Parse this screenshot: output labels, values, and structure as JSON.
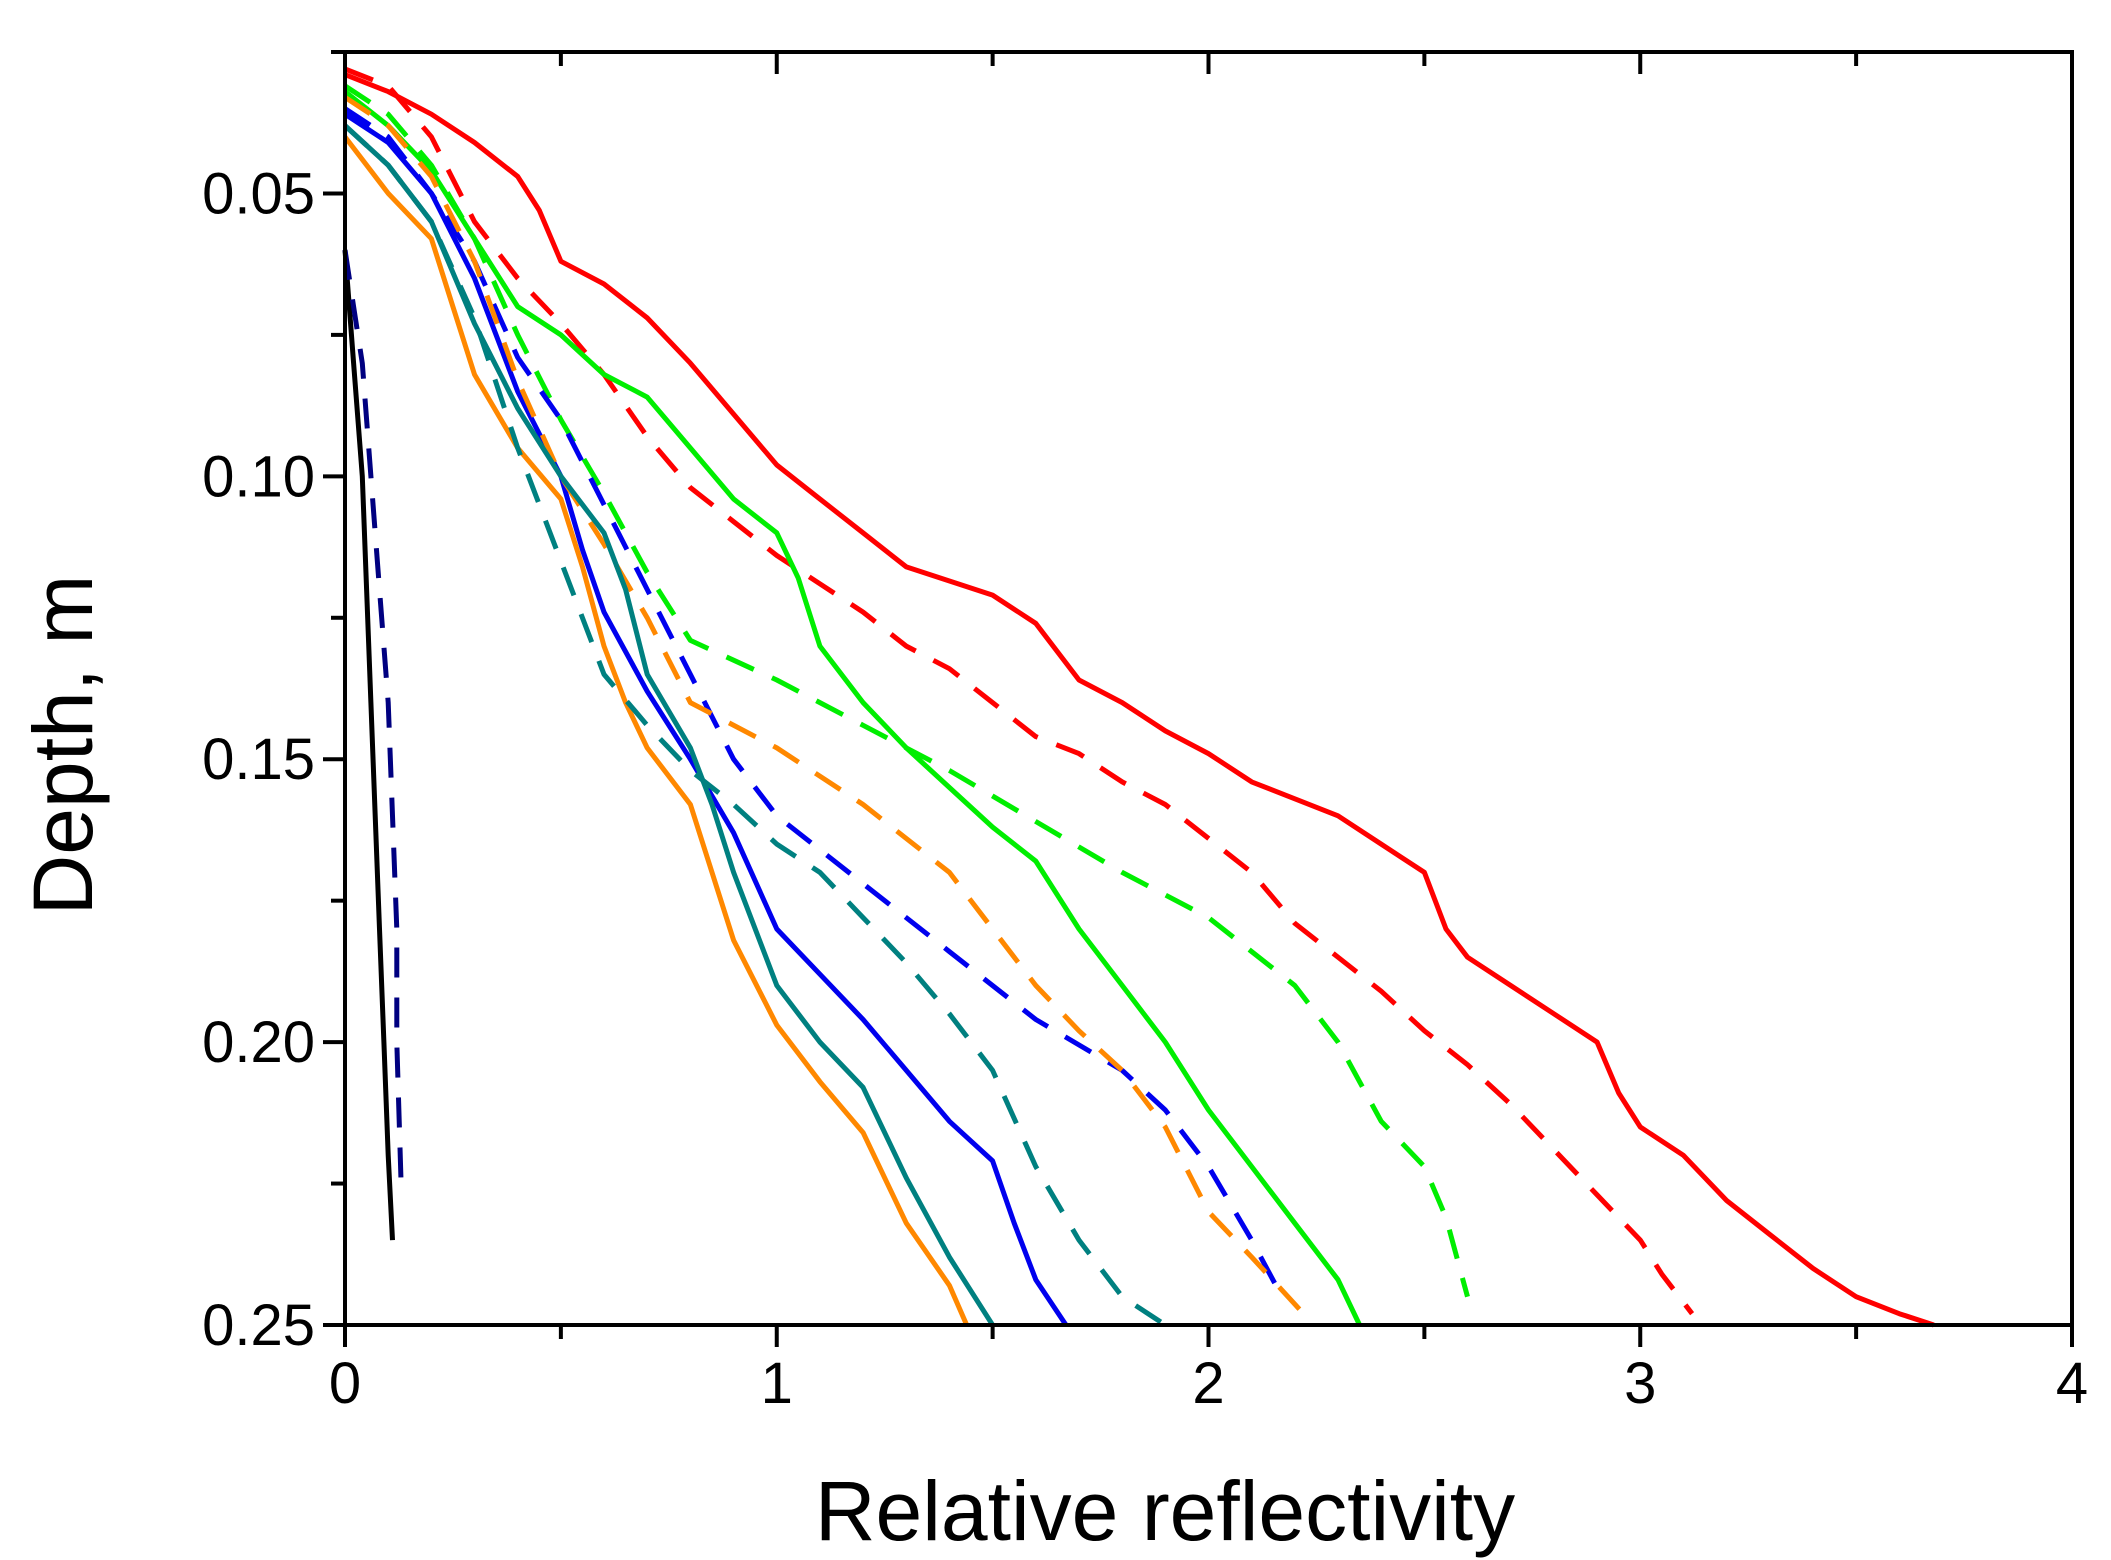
{
  "chart_data": {
    "type": "line",
    "title": "",
    "xlabel": "Relative reflectivity",
    "ylabel": "Depth, m",
    "xlim": [
      0,
      4
    ],
    "ylim": [
      0.025,
      0.25
    ],
    "y_inverted": true,
    "grid": false,
    "legend": "none",
    "x_ticks": [
      0,
      1,
      2,
      3,
      4
    ],
    "x_tick_labels": [
      "0",
      "1",
      "2",
      "3",
      "4"
    ],
    "y_ticks": [
      0.05,
      0.1,
      0.15,
      0.2,
      0.25
    ],
    "y_tick_labels": [
      "0.05",
      "0.10",
      "0.15",
      "0.20",
      "0.25"
    ],
    "series": [
      {
        "name": "red solid",
        "color": "#ff0000",
        "dash": "solid",
        "points": [
          [
            0,
            0.029
          ],
          [
            0.1,
            0.032
          ],
          [
            0.2,
            0.036
          ],
          [
            0.3,
            0.041
          ],
          [
            0.4,
            0.047
          ],
          [
            0.45,
            0.053
          ],
          [
            0.5,
            0.062
          ],
          [
            0.6,
            0.066
          ],
          [
            0.7,
            0.072
          ],
          [
            0.8,
            0.08
          ],
          [
            0.9,
            0.089
          ],
          [
            1.0,
            0.098
          ],
          [
            1.1,
            0.104
          ],
          [
            1.2,
            0.11
          ],
          [
            1.3,
            0.116
          ],
          [
            1.5,
            0.121
          ],
          [
            1.6,
            0.126
          ],
          [
            1.7,
            0.136
          ],
          [
            1.8,
            0.14
          ],
          [
            1.9,
            0.145
          ],
          [
            2.0,
            0.149
          ],
          [
            2.1,
            0.154
          ],
          [
            2.2,
            0.157
          ],
          [
            2.3,
            0.16
          ],
          [
            2.4,
            0.165
          ],
          [
            2.5,
            0.17
          ],
          [
            2.55,
            0.18
          ],
          [
            2.6,
            0.185
          ],
          [
            2.7,
            0.19
          ],
          [
            2.8,
            0.195
          ],
          [
            2.9,
            0.2
          ],
          [
            2.95,
            0.209
          ],
          [
            3.0,
            0.215
          ],
          [
            3.1,
            0.22
          ],
          [
            3.2,
            0.228
          ],
          [
            3.3,
            0.234
          ],
          [
            3.4,
            0.24
          ],
          [
            3.5,
            0.245
          ],
          [
            3.6,
            0.248
          ],
          [
            3.68,
            0.25
          ]
        ]
      },
      {
        "name": "red dashed",
        "color": "#ff0000",
        "dash": "dashed",
        "points": [
          [
            0,
            0.028
          ],
          [
            0.1,
            0.031
          ],
          [
            0.2,
            0.04
          ],
          [
            0.3,
            0.055
          ],
          [
            0.4,
            0.065
          ],
          [
            0.5,
            0.073
          ],
          [
            0.6,
            0.082
          ],
          [
            0.7,
            0.093
          ],
          [
            0.8,
            0.102
          ],
          [
            0.9,
            0.108
          ],
          [
            1.0,
            0.114
          ],
          [
            1.1,
            0.119
          ],
          [
            1.2,
            0.124
          ],
          [
            1.3,
            0.13
          ],
          [
            1.4,
            0.134
          ],
          [
            1.5,
            0.14
          ],
          [
            1.6,
            0.146
          ],
          [
            1.7,
            0.149
          ],
          [
            1.8,
            0.154
          ],
          [
            1.9,
            0.158
          ],
          [
            2.0,
            0.164
          ],
          [
            2.1,
            0.17
          ],
          [
            2.2,
            0.179
          ],
          [
            2.3,
            0.185
          ],
          [
            2.4,
            0.191
          ],
          [
            2.5,
            0.198
          ],
          [
            2.6,
            0.204
          ],
          [
            2.7,
            0.211
          ],
          [
            2.8,
            0.219
          ],
          [
            2.9,
            0.227
          ],
          [
            3.0,
            0.235
          ],
          [
            3.05,
            0.241
          ],
          [
            3.12,
            0.248
          ]
        ]
      },
      {
        "name": "green solid",
        "color": "#00ee00",
        "dash": "solid",
        "points": [
          [
            0,
            0.032
          ],
          [
            0.1,
            0.038
          ],
          [
            0.2,
            0.046
          ],
          [
            0.3,
            0.058
          ],
          [
            0.4,
            0.07
          ],
          [
            0.5,
            0.075
          ],
          [
            0.6,
            0.082
          ],
          [
            0.7,
            0.086
          ],
          [
            0.8,
            0.095
          ],
          [
            0.9,
            0.104
          ],
          [
            1.0,
            0.11
          ],
          [
            1.05,
            0.118
          ],
          [
            1.1,
            0.13
          ],
          [
            1.2,
            0.14
          ],
          [
            1.3,
            0.148
          ],
          [
            1.4,
            0.155
          ],
          [
            1.5,
            0.162
          ],
          [
            1.6,
            0.168
          ],
          [
            1.7,
            0.18
          ],
          [
            1.8,
            0.19
          ],
          [
            1.9,
            0.2
          ],
          [
            2.0,
            0.212
          ],
          [
            2.1,
            0.222
          ],
          [
            2.2,
            0.232
          ],
          [
            2.3,
            0.242
          ],
          [
            2.35,
            0.25
          ]
        ]
      },
      {
        "name": "green dashed",
        "color": "#00ee00",
        "dash": "dashed",
        "points": [
          [
            0,
            0.031
          ],
          [
            0.1,
            0.036
          ],
          [
            0.2,
            0.045
          ],
          [
            0.3,
            0.058
          ],
          [
            0.4,
            0.075
          ],
          [
            0.5,
            0.09
          ],
          [
            0.6,
            0.103
          ],
          [
            0.7,
            0.117
          ],
          [
            0.8,
            0.129
          ],
          [
            1.0,
            0.136
          ],
          [
            1.2,
            0.144
          ],
          [
            1.4,
            0.152
          ],
          [
            1.6,
            0.161
          ],
          [
            1.8,
            0.17
          ],
          [
            2.0,
            0.178
          ],
          [
            2.1,
            0.184
          ],
          [
            2.2,
            0.19
          ],
          [
            2.3,
            0.2
          ],
          [
            2.4,
            0.214
          ],
          [
            2.5,
            0.222
          ],
          [
            2.55,
            0.231
          ],
          [
            2.6,
            0.245
          ]
        ]
      },
      {
        "name": "blue solid",
        "color": "#0000ee",
        "dash": "solid",
        "points": [
          [
            0,
            0.036
          ],
          [
            0.1,
            0.041
          ],
          [
            0.2,
            0.05
          ],
          [
            0.3,
            0.065
          ],
          [
            0.4,
            0.085
          ],
          [
            0.5,
            0.1
          ],
          [
            0.55,
            0.113
          ],
          [
            0.6,
            0.124
          ],
          [
            0.7,
            0.138
          ],
          [
            0.8,
            0.15
          ],
          [
            0.9,
            0.163
          ],
          [
            1.0,
            0.18
          ],
          [
            1.1,
            0.188
          ],
          [
            1.2,
            0.196
          ],
          [
            1.3,
            0.205
          ],
          [
            1.4,
            0.214
          ],
          [
            1.5,
            0.221
          ],
          [
            1.55,
            0.232
          ],
          [
            1.6,
            0.242
          ],
          [
            1.67,
            0.25
          ]
        ]
      },
      {
        "name": "blue dashed",
        "color": "#0000ee",
        "dash": "dashed",
        "points": [
          [
            0,
            0.035
          ],
          [
            0.1,
            0.04
          ],
          [
            0.2,
            0.05
          ],
          [
            0.3,
            0.062
          ],
          [
            0.4,
            0.079
          ],
          [
            0.5,
            0.09
          ],
          [
            0.6,
            0.105
          ],
          [
            0.7,
            0.12
          ],
          [
            0.8,
            0.135
          ],
          [
            0.9,
            0.15
          ],
          [
            1.0,
            0.16
          ],
          [
            1.2,
            0.172
          ],
          [
            1.4,
            0.184
          ],
          [
            1.6,
            0.196
          ],
          [
            1.8,
            0.205
          ],
          [
            1.9,
            0.212
          ],
          [
            2.0,
            0.222
          ],
          [
            2.1,
            0.235
          ],
          [
            2.17,
            0.245
          ]
        ]
      },
      {
        "name": "orange solid",
        "color": "#ff8800",
        "dash": "solid",
        "points": [
          [
            0,
            0.04
          ],
          [
            0.1,
            0.05
          ],
          [
            0.2,
            0.058
          ],
          [
            0.25,
            0.07
          ],
          [
            0.3,
            0.082
          ],
          [
            0.4,
            0.095
          ],
          [
            0.5,
            0.104
          ],
          [
            0.55,
            0.116
          ],
          [
            0.6,
            0.13
          ],
          [
            0.65,
            0.14
          ],
          [
            0.7,
            0.148
          ],
          [
            0.8,
            0.158
          ],
          [
            0.85,
            0.17
          ],
          [
            0.9,
            0.182
          ],
          [
            1.0,
            0.197
          ],
          [
            1.1,
            0.207
          ],
          [
            1.2,
            0.216
          ],
          [
            1.3,
            0.232
          ],
          [
            1.4,
            0.243
          ],
          [
            1.44,
            0.25
          ]
        ]
      },
      {
        "name": "orange dashed",
        "color": "#ff8800",
        "dash": "dashed",
        "points": [
          [
            0,
            0.033
          ],
          [
            0.1,
            0.038
          ],
          [
            0.2,
            0.047
          ],
          [
            0.3,
            0.062
          ],
          [
            0.4,
            0.083
          ],
          [
            0.5,
            0.1
          ],
          [
            0.6,
            0.112
          ],
          [
            0.7,
            0.125
          ],
          [
            0.8,
            0.14
          ],
          [
            1.0,
            0.148
          ],
          [
            1.2,
            0.158
          ],
          [
            1.4,
            0.17
          ],
          [
            1.5,
            0.18
          ],
          [
            1.6,
            0.19
          ],
          [
            1.7,
            0.198
          ],
          [
            1.8,
            0.205
          ],
          [
            1.9,
            0.215
          ],
          [
            2.0,
            0.23
          ],
          [
            2.1,
            0.238
          ],
          [
            2.22,
            0.248
          ]
        ]
      },
      {
        "name": "teal solid",
        "color": "#008080",
        "dash": "solid",
        "points": [
          [
            0,
            0.038
          ],
          [
            0.1,
            0.045
          ],
          [
            0.2,
            0.055
          ],
          [
            0.3,
            0.073
          ],
          [
            0.4,
            0.088
          ],
          [
            0.5,
            0.1
          ],
          [
            0.6,
            0.11
          ],
          [
            0.65,
            0.12
          ],
          [
            0.7,
            0.135
          ],
          [
            0.8,
            0.148
          ],
          [
            0.85,
            0.158
          ],
          [
            0.9,
            0.17
          ],
          [
            1.0,
            0.19
          ],
          [
            1.1,
            0.2
          ],
          [
            1.2,
            0.208
          ],
          [
            1.3,
            0.224
          ],
          [
            1.4,
            0.238
          ],
          [
            1.5,
            0.25
          ]
        ]
      },
      {
        "name": "teal dashed",
        "color": "#008080",
        "dash": "dashed",
        "points": [
          [
            0,
            0.038
          ],
          [
            0.1,
            0.045
          ],
          [
            0.2,
            0.055
          ],
          [
            0.3,
            0.072
          ],
          [
            0.4,
            0.095
          ],
          [
            0.5,
            0.115
          ],
          [
            0.6,
            0.135
          ],
          [
            0.7,
            0.144
          ],
          [
            0.8,
            0.152
          ],
          [
            0.9,
            0.158
          ],
          [
            1.0,
            0.165
          ],
          [
            1.1,
            0.17
          ],
          [
            1.2,
            0.178
          ],
          [
            1.3,
            0.186
          ],
          [
            1.4,
            0.195
          ],
          [
            1.5,
            0.205
          ],
          [
            1.6,
            0.222
          ],
          [
            1.7,
            0.235
          ],
          [
            1.8,
            0.245
          ],
          [
            1.9,
            0.25
          ]
        ]
      },
      {
        "name": "black solid",
        "color": "#000000",
        "dash": "solid",
        "points": [
          [
            0,
            0.06
          ],
          [
            0.02,
            0.08
          ],
          [
            0.04,
            0.1
          ],
          [
            0.05,
            0.12
          ],
          [
            0.06,
            0.14
          ],
          [
            0.07,
            0.16
          ],
          [
            0.08,
            0.18
          ],
          [
            0.09,
            0.2
          ],
          [
            0.1,
            0.22
          ],
          [
            0.11,
            0.235
          ]
        ]
      },
      {
        "name": "navy dashed",
        "color": "#000080",
        "dash": "dashed",
        "points": [
          [
            0,
            0.06
          ],
          [
            0.02,
            0.07
          ],
          [
            0.04,
            0.08
          ],
          [
            0.06,
            0.1
          ],
          [
            0.08,
            0.12
          ],
          [
            0.1,
            0.14
          ],
          [
            0.11,
            0.16
          ],
          [
            0.12,
            0.18
          ],
          [
            0.12,
            0.2
          ],
          [
            0.13,
            0.225
          ]
        ]
      }
    ]
  }
}
